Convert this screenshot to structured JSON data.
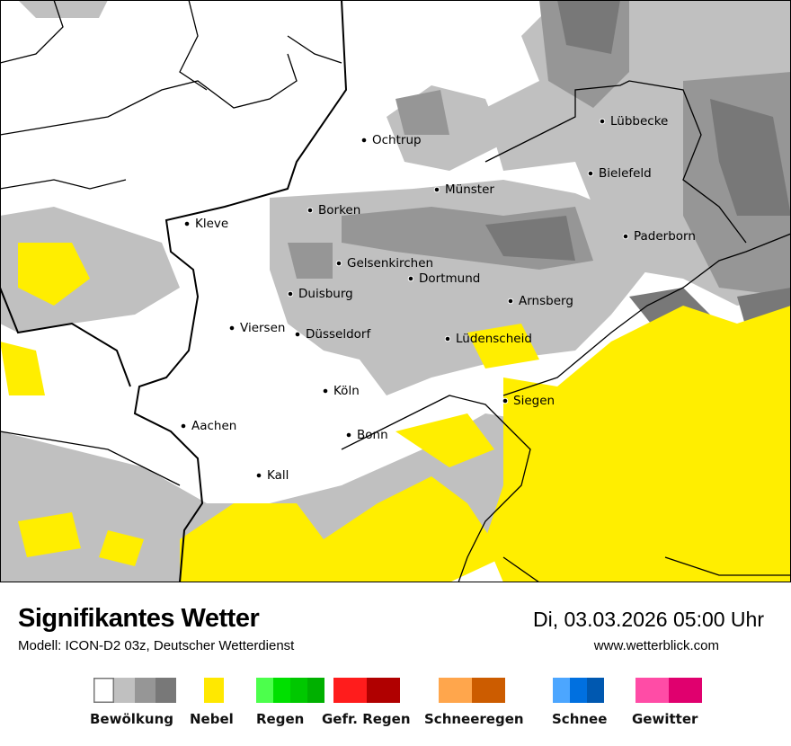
{
  "map": {
    "cities": [
      "Ochtrup",
      "Lübbecke",
      "Bielefeld",
      "Münster",
      "Borken",
      "Kleve",
      "Paderborn",
      "Gelsenkirchen",
      "Dortmund",
      "Duisburg",
      "Arnsberg",
      "Viersen",
      "Düsseldorf",
      "Lüdenscheid",
      "Köln",
      "Siegen",
      "Aachen",
      "Bonn",
      "Kall"
    ],
    "colors": {
      "cloud_light": "#c0c0c0",
      "cloud_mid": "#969696",
      "cloud_dark": "#787878",
      "fog": "#ffee00",
      "border": "#000000"
    }
  },
  "footer": {
    "title": "Signifikantes Wetter",
    "subtitle": "Modell: ICON-D2 03z, Deutscher Wetterdienst",
    "datetime": "Di, 03.03.2026 05:00 Uhr",
    "website": "www.wetterblick.com"
  },
  "legend": [
    {
      "label": "Bewölkung",
      "colors": [
        "#ffffff",
        "#c0c0c0",
        "#969696",
        "#787878"
      ]
    },
    {
      "label": "Nebel",
      "colors": [
        "#ffe800"
      ]
    },
    {
      "label": "Regen",
      "colors": [
        "#4cff4c",
        "#00e000",
        "#00c800",
        "#00b000"
      ]
    },
    {
      "label": "Gefr. Regen",
      "colors": [
        "#ff1c1c",
        "#b00000"
      ]
    },
    {
      "label": "Schneeregen",
      "colors": [
        "#ffa64c",
        "#cc5c00"
      ]
    },
    {
      "label": "Schnee",
      "colors": [
        "#4ca6ff",
        "#0070e0",
        "#0058b0"
      ]
    },
    {
      "label": "Gewitter",
      "colors": [
        "#ff4ca6",
        "#e0006e"
      ]
    }
  ]
}
